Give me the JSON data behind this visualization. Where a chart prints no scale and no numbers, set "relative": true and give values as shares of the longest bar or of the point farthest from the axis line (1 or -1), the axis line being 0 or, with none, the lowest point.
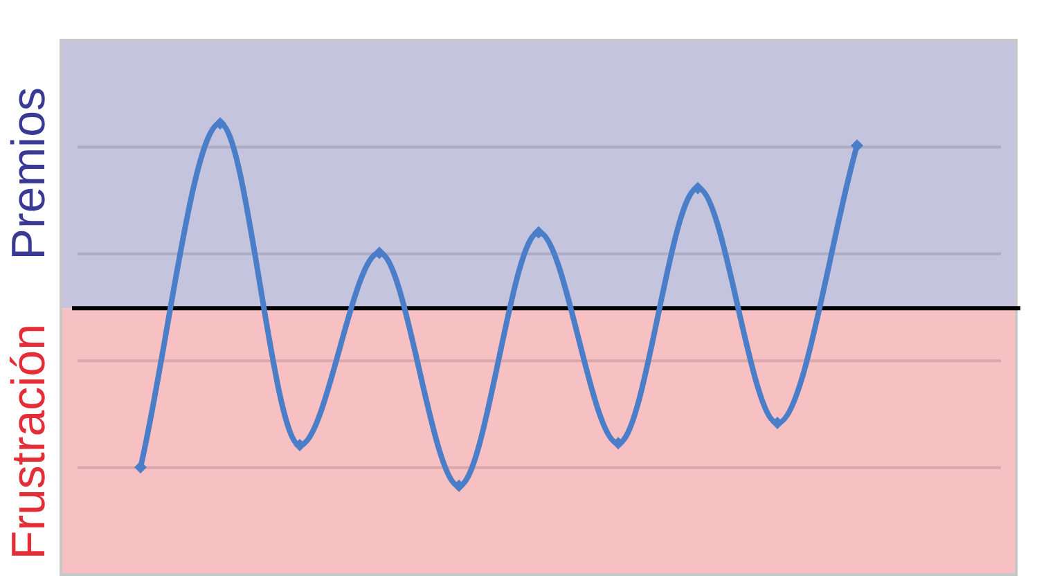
{
  "chart_data": {
    "type": "line",
    "relative": true,
    "categories": [
      null,
      null,
      null,
      null,
      null,
      null,
      null,
      null,
      null,
      null,
      null,
      null,
      null
    ],
    "values": [
      null,
      -0.86,
      1,
      -0.74,
      0.3,
      -0.96,
      0.41,
      -0.73,
      0.65,
      -0.62,
      0.88,
      null,
      null
    ],
    "color": "#4a7ec9",
    "marker": "diamond",
    "line_style": "solid",
    "grid": "y",
    "bands": [
      {
        "axis": "y",
        "from": 0,
        "to": 1.45,
        "label": "Premios",
        "color": "#c4c4df"
      },
      {
        "axis": "y",
        "from": -1.44,
        "to": 0,
        "label": "Frustración",
        "color": "#f7c0c3"
      }
    ]
  }
}
